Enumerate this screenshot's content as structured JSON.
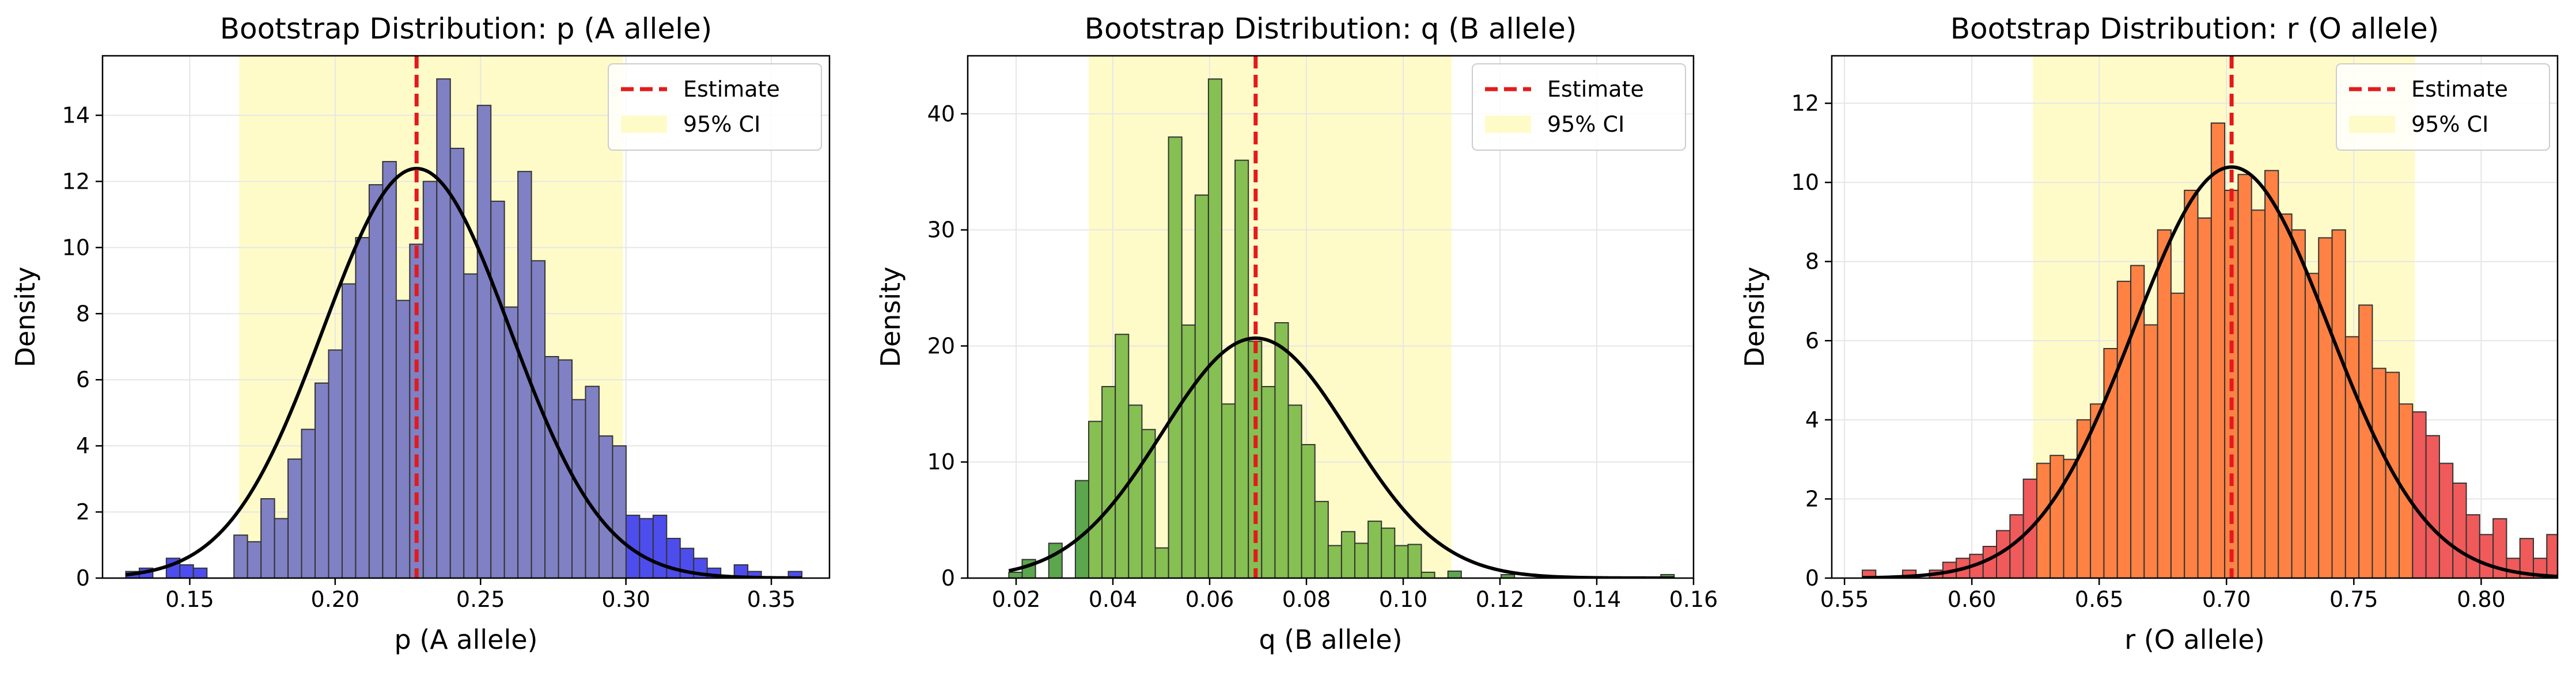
{
  "chart_data": [
    {
      "type": "histogram",
      "title": "Bootstrap Distribution: p (A allele)",
      "xlabel": "p (A allele)",
      "ylabel": "Density",
      "xlim": [
        0.12,
        0.37
      ],
      "ylim": [
        0,
        15.8
      ],
      "xticks": [
        "0.15",
        "0.20",
        "0.25",
        "0.30",
        "0.35"
      ],
      "xtick_values": [
        0.15,
        0.2,
        0.25,
        0.3,
        0.35
      ],
      "yticks": [
        "0",
        "2",
        "4",
        "6",
        "8",
        "10",
        "12",
        "14"
      ],
      "ytick_values": [
        0,
        2,
        4,
        6,
        8,
        10,
        12,
        14
      ],
      "bin_start": 0.128,
      "bin_width": 0.00465,
      "values": [
        0.2,
        0.3,
        0.0,
        0.6,
        0.4,
        0.3,
        0.0,
        0.0,
        1.3,
        1.1,
        2.4,
        1.8,
        3.6,
        4.5,
        5.9,
        6.9,
        8.9,
        10.3,
        11.9,
        12.6,
        8.4,
        10.1,
        12.0,
        15.1,
        13.0,
        9.2,
        14.3,
        11.4,
        8.2,
        12.3,
        9.6,
        6.7,
        6.6,
        5.4,
        5.8,
        4.3,
        4.0,
        1.9,
        1.8,
        1.9,
        1.2,
        0.9,
        0.6,
        0.3,
        0.0,
        0.4,
        0.2,
        0.0,
        0.0,
        0.2
      ],
      "estimate": 0.228,
      "ci": [
        0.167,
        0.299
      ],
      "normal_fit": {
        "mean": 0.228,
        "sd": 0.0322
      },
      "bar_color_inside": "#8080c4",
      "bar_color_outside": "#4d4dee",
      "legend": [
        "Estimate",
        "95% CI"
      ],
      "legend_position": "top-right",
      "grid": true
    },
    {
      "type": "histogram",
      "title": "Bootstrap Distribution: q (B allele)",
      "xlabel": "q (B allele)",
      "ylabel": "Density",
      "xlim": [
        0.01,
        0.16
      ],
      "ylim": [
        0,
        45
      ],
      "xticks": [
        "0.02",
        "0.04",
        "0.06",
        "0.08",
        "0.10",
        "0.12",
        "0.14",
        "0.16"
      ],
      "xtick_values": [
        0.02,
        0.04,
        0.06,
        0.08,
        0.1,
        0.12,
        0.14,
        0.16
      ],
      "yticks": [
        "0",
        "10",
        "20",
        "30",
        "40"
      ],
      "ytick_values": [
        0,
        10,
        20,
        30,
        40
      ],
      "bin_start": 0.0185,
      "bin_width": 0.00275,
      "values": [
        0.5,
        1.6,
        0.0,
        3.0,
        0.0,
        8.4,
        13.5,
        16.5,
        21.0,
        14.9,
        12.8,
        2.6,
        38.0,
        21.8,
        33.0,
        43.0,
        15.0,
        36.0,
        20.4,
        16.5,
        22.0,
        14.9,
        11.5,
        6.6,
        2.8,
        4.0,
        3.0,
        4.9,
        4.3,
        2.8,
        2.9,
        0.5,
        0.0,
        0.6,
        0.0,
        0.0,
        0.0,
        0.3,
        0.0,
        0.0,
        0.0,
        0.0,
        0.0,
        0.0,
        0.0,
        0.0,
        0.0,
        0.0,
        0.0,
        0.3
      ],
      "estimate": 0.0695,
      "ci": [
        0.035,
        0.11
      ],
      "normal_fit": {
        "mean": 0.0695,
        "sd": 0.0193
      },
      "bar_color_inside": "#86bf52",
      "bar_color_outside": "#5ca64e",
      "legend": [
        "Estimate",
        "95% CI"
      ],
      "legend_position": "top-right",
      "grid": true
    },
    {
      "type": "histogram",
      "title": "Bootstrap Distribution: r (O allele)",
      "xlabel": "r (O allele)",
      "ylabel": "Density",
      "xlim": [
        0.545,
        0.83
      ],
      "ylim": [
        0,
        13.2
      ],
      "xticks": [
        "0.55",
        "0.60",
        "0.65",
        "0.70",
        "0.75",
        "0.80"
      ],
      "xtick_values": [
        0.55,
        0.6,
        0.65,
        0.7,
        0.75,
        0.8
      ],
      "yticks": [
        "0",
        "2",
        "4",
        "6",
        "8",
        "10",
        "12"
      ],
      "ytick_values": [
        0,
        2,
        4,
        6,
        8,
        10,
        12
      ],
      "bin_start": 0.557,
      "bin_width": 0.00527,
      "values": [
        0.2,
        0.0,
        0.0,
        0.2,
        0.0,
        0.2,
        0.4,
        0.5,
        0.6,
        0.8,
        1.2,
        1.6,
        2.5,
        2.9,
        3.1,
        3.0,
        4.0,
        4.4,
        5.8,
        7.5,
        7.9,
        6.4,
        8.8,
        7.2,
        9.8,
        9.1,
        11.5,
        9.8,
        10.2,
        9.3,
        10.3,
        9.2,
        8.8,
        7.7,
        8.6,
        8.8,
        6.1,
        6.9,
        5.3,
        5.2,
        4.4,
        4.2,
        3.6,
        2.9,
        2.4,
        1.6,
        1.1,
        1.5,
        0.5,
        1.0,
        0.5,
        1.1,
        0.6,
        0.7,
        0.5,
        0.2,
        0.4,
        0.5,
        0.3,
        0.2
      ],
      "estimate": 0.702,
      "ci": [
        0.624,
        0.774
      ],
      "normal_fit": {
        "mean": 0.702,
        "sd": 0.0384
      },
      "bar_color_inside": "#ff8244",
      "bar_color_outside": "#f05a5a",
      "legend": [
        "Estimate",
        "95% CI"
      ],
      "legend_position": "top-right",
      "grid": true
    }
  ],
  "colors": {
    "estimate_line": "#e31a1c",
    "ci_band": "#fffbc9",
    "fit_curve": "#000000",
    "bar_edge": "#333333",
    "grid": "#e6e6e6"
  }
}
